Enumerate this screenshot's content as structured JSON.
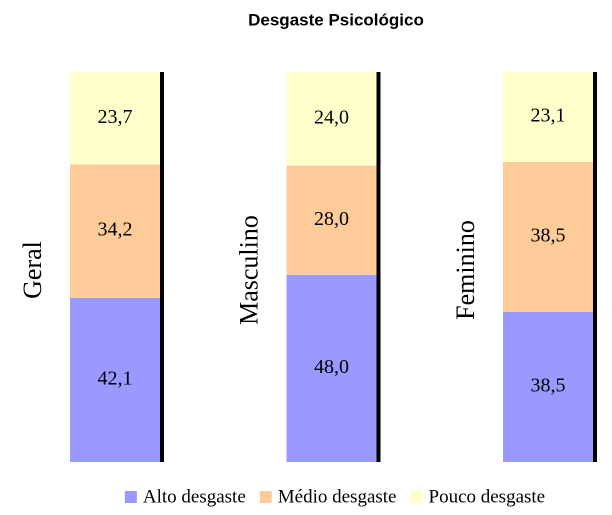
{
  "chart_data": {
    "type": "stacked_bar",
    "title": "Desgaste Psicológico",
    "categories": [
      "Geral",
      "Masculino",
      "Feminino"
    ],
    "series": [
      {
        "name": "Alto desgaste",
        "color": "#9999ff",
        "values": [
          42.1,
          48.0,
          38.5
        ],
        "value_labels": [
          "42,1",
          "48,0",
          "38,5"
        ]
      },
      {
        "name": "Médio desgaste",
        "color": "#ffcc99",
        "values": [
          34.2,
          28.0,
          38.5
        ],
        "value_labels": [
          "34,2",
          "28,0",
          "38,5"
        ]
      },
      {
        "name": "Pouco desgaste",
        "color": "#ffffcc",
        "values": [
          23.7,
          24.0,
          23.1
        ],
        "value_labels": [
          "23,7",
          "24,0",
          "23,1"
        ]
      }
    ]
  }
}
